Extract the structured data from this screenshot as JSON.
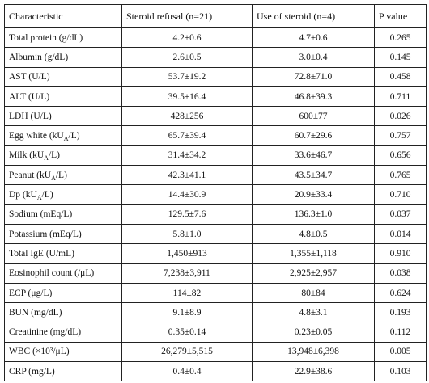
{
  "table": {
    "header": [
      "Characteristic",
      "Steroid refusal (n=21)",
      "Use of steroid (n=4)",
      "P value"
    ],
    "rows": [
      [
        "Total protein (g/dL)",
        "4.2±0.6",
        "4.7±0.6",
        "0.265"
      ],
      [
        "Albumin (g/dL)",
        "2.6±0.5",
        "3.0±0.4",
        "0.145"
      ],
      [
        "AST (U/L)",
        "53.7±19.2",
        "72.8±71.0",
        "0.458"
      ],
      [
        "ALT (U/L)",
        "39.5±16.4",
        "46.8±39.3",
        "0.711"
      ],
      [
        "LDH (U/L)",
        "428±256",
        "600±77",
        "0.026"
      ],
      [
        [
          "Egg white (kU",
          "A",
          "/L)"
        ],
        "65.7±39.4",
        "60.7±29.6",
        "0.757"
      ],
      [
        [
          "Milk (kU",
          "A",
          "/L)"
        ],
        "31.4±34.2",
        "33.6±46.7",
        "0.656"
      ],
      [
        [
          "Peanut (kU",
          "A",
          "/L)"
        ],
        "42.3±41.1",
        "43.5±34.7",
        "0.765"
      ],
      [
        [
          "Dp (kU",
          "A",
          "/L)"
        ],
        "14.4±30.9",
        "20.9±33.4",
        "0.710"
      ],
      [
        "Sodium (mEq/L)",
        "129.5±7.6",
        "136.3±1.0",
        "0.037"
      ],
      [
        "Potassium (mEq/L)",
        "5.8±1.0",
        "4.8±0.5",
        "0.014"
      ],
      [
        "Total IgE (U/mL)",
        "1,450±913",
        "1,355±1,118",
        "0.910"
      ],
      [
        "Eosinophil count (/μL)",
        "7,238±3,911",
        "2,925±2,957",
        "0.038"
      ],
      [
        "ECP (μg/L)",
        "114±82",
        "80±84",
        "0.624"
      ],
      [
        "BUN (mg/dL)",
        "9.1±8.9",
        "4.8±3.1",
        "0.193"
      ],
      [
        "Creatinine (mg/dL)",
        "0.35±0.14",
        "0.23±0.05",
        "0.112"
      ],
      [
        "WBC (×10³/μL)",
        "26,279±5,515",
        "13,948±6,398",
        "0.005"
      ],
      [
        "CRP (mg/L)",
        "0.4±0.4",
        "22.9±38.6",
        "0.103"
      ]
    ]
  }
}
